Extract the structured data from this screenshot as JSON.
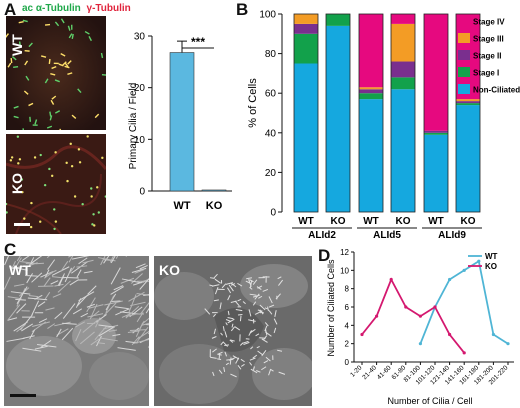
{
  "panels": {
    "a": "A",
    "b": "B",
    "c": "C",
    "d": "D"
  },
  "panel_a": {
    "stain_parts": [
      "ac α-Tubulin",
      "γ-Tubulin"
    ],
    "stain_colors": [
      "#1fa84a",
      "#e0243c"
    ],
    "image_labels": [
      "WT",
      "KO"
    ]
  },
  "panel_c": {
    "image_labels": [
      "WT",
      "KO"
    ]
  },
  "colors": {
    "bar_blue": "#5bb8e0",
    "stage_iv": "#e6097f",
    "stage_iii": "#f39c25",
    "stage_ii": "#7a2f8e",
    "stage_i": "#12a14b",
    "non_ciliated": "#15a8df",
    "line_wt": "#4fb5d5",
    "line_ko": "#d4186f"
  },
  "chart_data": [
    {
      "id": "primary-cilia",
      "type": "bar",
      "categories": [
        "WT",
        "KO"
      ],
      "values": [
        26.8,
        0.2
      ],
      "errors": [
        2.2,
        0
      ],
      "ylabel": "Primary Cilia / Field",
      "ylim": [
        0,
        30
      ],
      "yticks": [
        "0",
        "10",
        "20",
        "30"
      ],
      "significance": "***"
    },
    {
      "id": "ciliation-stages",
      "type": "bar",
      "stacked": true,
      "ylabel": "% of Cells",
      "ylim": [
        0,
        100
      ],
      "yticks": [
        "0",
        "20",
        "40",
        "60",
        "80",
        "100"
      ],
      "categories": [
        "WT",
        "KO",
        "WT",
        "KO",
        "WT",
        "KO"
      ],
      "groups": [
        "ALId2",
        "ALId5",
        "ALId9"
      ],
      "legend": [
        "Stage IV",
        "Stage III",
        "Stage II",
        "Stage I",
        "Non-Ciliated"
      ],
      "series": [
        {
          "name": "Non-Ciliated",
          "values": [
            75,
            94,
            57,
            62,
            39,
            54
          ]
        },
        {
          "name": "Stage I",
          "values": [
            15,
            6,
            3,
            6,
            1,
            1
          ]
        },
        {
          "name": "Stage II",
          "values": [
            5,
            0,
            2,
            8,
            1,
            1
          ]
        },
        {
          "name": "Stage III",
          "values": [
            5,
            0,
            1,
            19,
            0,
            1
          ]
        },
        {
          "name": "Stage IV",
          "values": [
            0,
            0,
            37,
            5,
            59,
            43
          ]
        }
      ]
    },
    {
      "id": "cilia-per-cell",
      "type": "line",
      "ylabel": "Number of Ciliated Cells",
      "xlabel": "Number of Cilia / Cell",
      "ylim": [
        0,
        12
      ],
      "yticks": [
        "0",
        "2",
        "4",
        "6",
        "8",
        "10",
        "12"
      ],
      "categories": [
        "1-20",
        "21-40",
        "41-60",
        "61-80",
        "81-100",
        "101-120",
        "121-140",
        "141-160",
        "161-180",
        "181-200",
        "201-220"
      ],
      "legend": [
        "WT",
        "KO"
      ],
      "series": [
        {
          "name": "WT",
          "values": [
            null,
            null,
            null,
            null,
            2,
            6,
            9,
            10,
            11,
            3,
            2
          ]
        },
        {
          "name": "KO",
          "values": [
            3,
            5,
            9,
            6,
            5,
            6,
            3,
            1,
            null,
            null,
            null
          ]
        }
      ]
    }
  ]
}
